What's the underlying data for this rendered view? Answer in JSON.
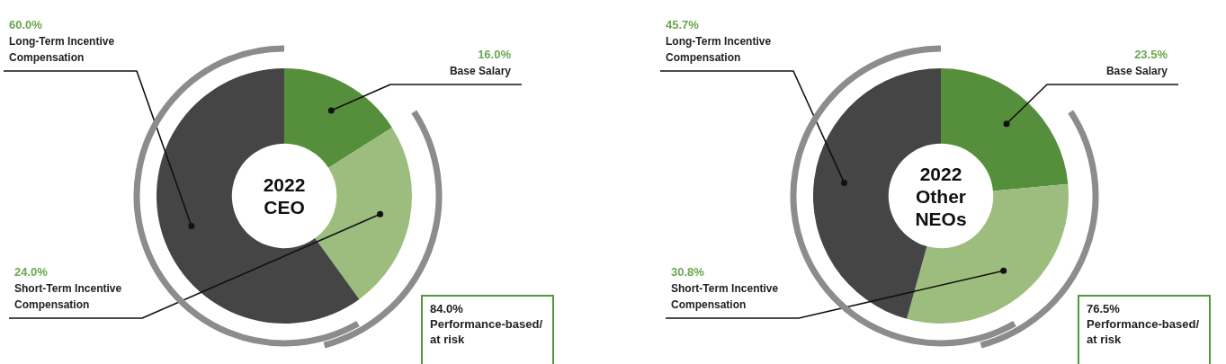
{
  "chart_data": [
    {
      "type": "donut",
      "title": "2022 CEO",
      "categories": [
        "Base Salary",
        "Short-Term Incentive Compensation",
        "Long-Term Incentive Compensation"
      ],
      "values": [
        16.0,
        24.0,
        60.0
      ],
      "colors": [
        "#568f3b",
        "#9dbd7e",
        "#454545"
      ],
      "value_labels": [
        "16.0%",
        "24.0%",
        "60.0%"
      ],
      "annotations": [
        "84.0% Performance-based/ at risk"
      ]
    },
    {
      "type": "donut",
      "title": "2022 Other NEOs",
      "categories": [
        "Base Salary",
        "Short-Term Incentive Compensation",
        "Long-Term Incentive Compensation"
      ],
      "values": [
        23.5,
        30.8,
        45.7
      ],
      "colors": [
        "#568f3b",
        "#9dbd7e",
        "#454545"
      ],
      "value_labels": [
        "23.5%",
        "30.8%",
        "45.7%"
      ],
      "annotations": [
        "76.5% Performance-based/ at risk"
      ]
    }
  ]
}
